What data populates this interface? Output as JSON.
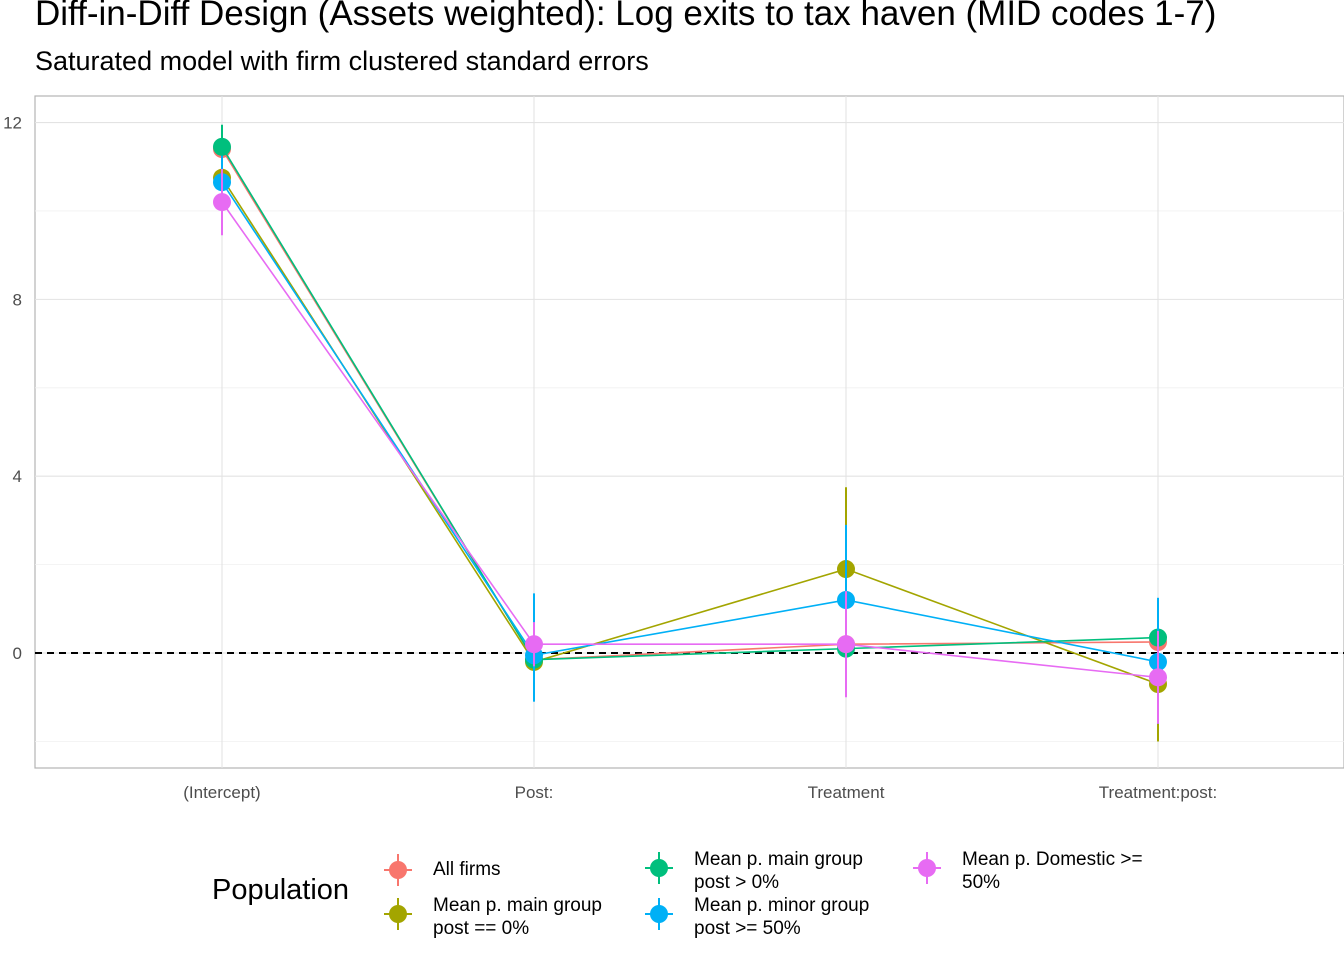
{
  "title": "Diff-in-Diff Design (Assets weighted): Log exits to tax haven (MID codes 1-7)",
  "subtitle": "Saturated model with firm clustered standard errors",
  "legend": {
    "title": "Population",
    "items": [
      {
        "label": "All firms",
        "color": "#F8766D"
      },
      {
        "label": "Mean p. main group\npost == 0%",
        "color": "#A3A500"
      },
      {
        "label": "Mean p. main group\npost > 0%",
        "color": "#00BF7D"
      },
      {
        "label": "Mean p. minor group\npost >= 50%",
        "color": "#00B0F6"
      },
      {
        "label": "Mean p. Domestic >=\n50%",
        "color": "#E76BF3"
      }
    ]
  },
  "chart_data": {
    "type": "scatter",
    "title": "Diff-in-Diff Design (Assets weighted): Log exits to tax haven (MID codes 1-7)",
    "subtitle": "Saturated model with firm clustered standard errors",
    "xlabel": "",
    "ylabel": "",
    "categories": [
      "(Intercept)",
      "Post:",
      "Treatment",
      "Treatment:post:"
    ],
    "y_ticks": [
      0,
      4,
      8,
      12
    ],
    "ylim": [
      -2.6,
      12.6
    ],
    "grid": true,
    "reference_line": {
      "y": 0,
      "style": "dashed"
    },
    "legend_position": "bottom",
    "series": [
      {
        "name": "All firms",
        "color": "#F8766D",
        "values": [
          11.4,
          -0.15,
          0.2,
          0.25
        ],
        "lower": [
          10.9,
          -0.45,
          -0.2,
          -0.2
        ],
        "upper": [
          11.9,
          0.15,
          0.6,
          0.7
        ]
      },
      {
        "name": "Mean p. main group\npost == 0%",
        "color": "#A3A500",
        "values": [
          10.75,
          -0.2,
          1.9,
          -0.7
        ],
        "lower": [
          10.1,
          -0.6,
          0.1,
          -2.0
        ],
        "upper": [
          11.4,
          0.2,
          3.75,
          0.6
        ]
      },
      {
        "name": "Mean p. main group\npost > 0%",
        "color": "#00BF7D",
        "values": [
          11.45,
          -0.15,
          0.1,
          0.35
        ],
        "lower": [
          10.95,
          -0.45,
          -0.3,
          -0.1
        ],
        "upper": [
          11.95,
          0.15,
          0.5,
          0.8
        ]
      },
      {
        "name": "Mean p. minor group\npost >= 50%",
        "color": "#00B0F6",
        "values": [
          10.65,
          -0.05,
          1.2,
          -0.2
        ],
        "lower": [
          10.05,
          -1.1,
          -0.5,
          -1.6
        ],
        "upper": [
          11.25,
          1.35,
          2.9,
          1.25
        ]
      },
      {
        "name": "Mean p. Domestic >=\n50%",
        "color": "#E76BF3",
        "values": [
          10.2,
          0.2,
          0.2,
          -0.55
        ],
        "lower": [
          9.45,
          -0.3,
          -1.0,
          -1.6
        ],
        "upper": [
          10.95,
          0.7,
          1.4,
          0.5
        ]
      }
    ]
  }
}
